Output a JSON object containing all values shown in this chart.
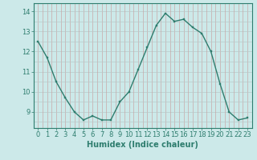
{
  "x": [
    0,
    1,
    2,
    3,
    4,
    5,
    6,
    7,
    8,
    9,
    10,
    11,
    12,
    13,
    14,
    15,
    16,
    17,
    18,
    19,
    20,
    21,
    22,
    23
  ],
  "y": [
    12.5,
    11.7,
    10.5,
    9.7,
    9.0,
    8.6,
    8.8,
    8.6,
    8.6,
    9.5,
    10.0,
    11.1,
    12.2,
    13.3,
    13.9,
    13.5,
    13.6,
    13.2,
    12.9,
    12.0,
    10.4,
    9.0,
    8.6,
    8.7
  ],
  "line_color": "#2e7d6e",
  "marker_color": "#2e7d6e",
  "bg_color": "#cce9e9",
  "grid_color_major": "#c8a8a8",
  "grid_color_minor": "#b8c8c8",
  "xlabel": "Humidex (Indice chaleur)",
  "xlim": [
    -0.5,
    23.5
  ],
  "ylim": [
    8.2,
    14.4
  ],
  "yticks": [
    9,
    10,
    11,
    12,
    13,
    14
  ],
  "xticks": [
    0,
    1,
    2,
    3,
    4,
    5,
    6,
    7,
    8,
    9,
    10,
    11,
    12,
    13,
    14,
    15,
    16,
    17,
    18,
    19,
    20,
    21,
    22,
    23
  ],
  "xlabel_fontsize": 7,
  "tick_fontsize": 6,
  "linewidth": 1.0,
  "markersize": 2.0
}
